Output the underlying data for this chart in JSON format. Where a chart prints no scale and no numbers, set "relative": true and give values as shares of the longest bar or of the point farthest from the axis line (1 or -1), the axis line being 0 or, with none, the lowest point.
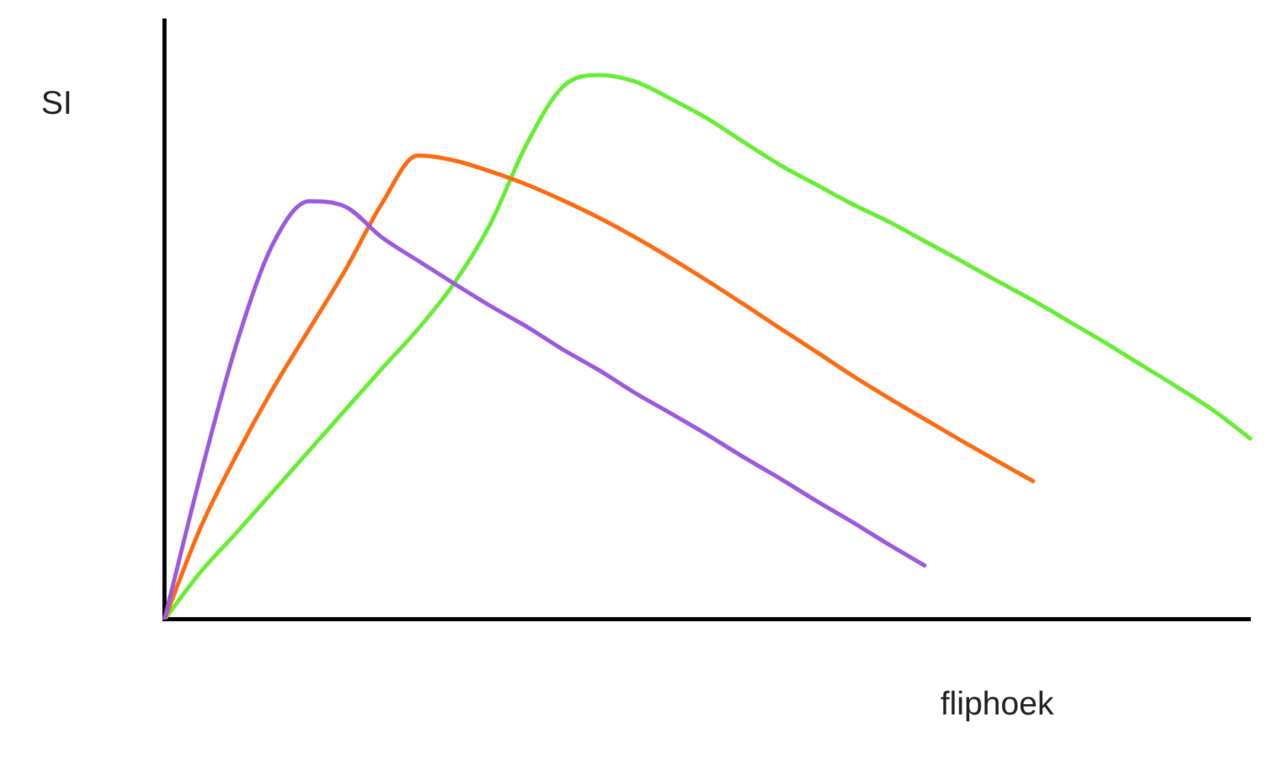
{
  "chart_data": {
    "type": "line",
    "relative": true,
    "xlabel": "fliphoek",
    "ylabel": "SI",
    "grid": false,
    "legend": false,
    "marker": "none",
    "line_style": "solid",
    "categories": [
      null,
      null,
      null,
      null,
      null,
      null,
      null,
      null,
      null,
      null,
      null,
      null,
      null,
      null,
      null,
      null,
      null,
      null,
      null,
      null,
      null,
      null,
      null,
      null,
      null,
      null,
      null,
      null,
      null,
      null,
      null
    ],
    "series": [
      {
        "color": "#9b59e0",
        "values": [
          0,
          0.266,
          0.508,
          0.69,
          0.768,
          0.758,
          0.702,
          0.659,
          0.617,
          0.576,
          0.538,
          0.496,
          0.458,
          0.416,
          0.378,
          0.339,
          0.298,
          0.259,
          0.218,
          0.179,
          0.138,
          0.099,
          null,
          null,
          null,
          null,
          null,
          null,
          null,
          null,
          null
        ]
      },
      {
        "color": "#ff6a10",
        "values": [
          0,
          0.169,
          0.303,
          0.424,
          0.533,
          0.642,
          0.763,
          0.852,
          0.843,
          0.823,
          0.799,
          0.77,
          0.738,
          0.702,
          0.663,
          0.622,
          0.579,
          0.535,
          0.492,
          0.448,
          0.407,
          0.368,
          0.329,
          0.291,
          0.254,
          null,
          null,
          null,
          null,
          null,
          null
        ]
      },
      {
        "color": "#66ee33",
        "values": [
          0,
          0.087,
          0.16,
          0.235,
          0.31,
          0.385,
          0.46,
          0.533,
          0.617,
          0.726,
          0.872,
          0.978,
          1,
          0.988,
          0.956,
          0.92,
          0.877,
          0.835,
          0.799,
          0.763,
          0.731,
          0.695,
          0.659,
          0.622,
          0.586,
          0.547,
          0.508,
          0.467,
          0.426,
          0.383,
          0.332
        ]
      }
    ]
  }
}
